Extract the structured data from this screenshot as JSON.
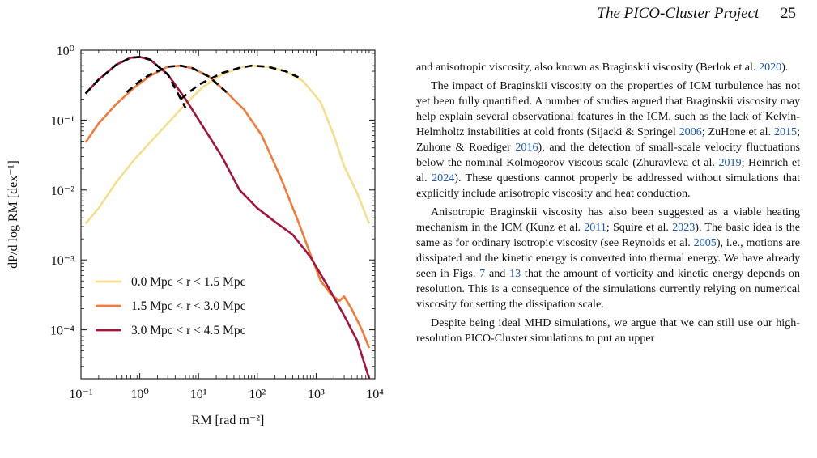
{
  "header": {
    "title": "The PICO-Cluster Project",
    "page_number": "25"
  },
  "figure": {
    "ylabel": "dP/d log RM  [dex⁻¹]",
    "xlabel": "RM  [rad m⁻²]",
    "x_ticks": [
      "10⁻¹",
      "10⁰",
      "10¹",
      "10²",
      "10³",
      "10⁴"
    ],
    "y_ticks": [
      "10⁰",
      "10⁻¹",
      "10⁻²",
      "10⁻³",
      "10⁻⁴"
    ],
    "legend": [
      "0.0 Mpc < r < 1.5 Mpc",
      "1.5 Mpc < r < 3.0 Mpc",
      "3.0 Mpc < r < 4.5 Mpc"
    ],
    "colors": [
      "#f6df8c",
      "#f47a3a",
      "#a3133a",
      "#000000"
    ]
  },
  "chart_data": {
    "type": "line",
    "xscale": "log",
    "yscale": "log",
    "xlabel": "RM  [rad m⁻²]",
    "ylabel": "dP/d log RM  [dex⁻¹]",
    "xlim": [
      0.1,
      10000
    ],
    "ylim": [
      2e-05,
      1
    ],
    "legend_position": "bottom-left",
    "series": [
      {
        "name": "0.0 Mpc < r < 1.5 Mpc",
        "color": "#f6df8c",
        "x": [
          0.12,
          0.2,
          0.4,
          0.8,
          1.5,
          3,
          6,
          12,
          25,
          50,
          80,
          150,
          300,
          600,
          1200,
          2000,
          3000,
          5000,
          8000
        ],
        "y": [
          0.0033,
          0.0055,
          0.013,
          0.027,
          0.048,
          0.09,
          0.17,
          0.3,
          0.45,
          0.56,
          0.6,
          0.58,
          0.5,
          0.36,
          0.18,
          0.06,
          0.022,
          0.009,
          0.0033
        ]
      },
      {
        "name": "1.5 Mpc < r < 3.0 Mpc",
        "color": "#f47a3a",
        "x": [
          0.12,
          0.2,
          0.4,
          0.8,
          1.5,
          3,
          5,
          8,
          15,
          30,
          60,
          120,
          250,
          500,
          800,
          1200,
          1800,
          2500,
          3000,
          4000,
          6000,
          8000
        ],
        "y": [
          0.048,
          0.09,
          0.17,
          0.29,
          0.43,
          0.58,
          0.6,
          0.55,
          0.42,
          0.25,
          0.14,
          0.06,
          0.015,
          0.0035,
          0.0012,
          0.0005,
          0.00032,
          0.00026,
          0.0003,
          0.0002,
          0.0001,
          5.5e-05
        ]
      },
      {
        "name": "3.0 Mpc < r < 4.5 Mpc",
        "color": "#a3133a",
        "x": [
          0.12,
          0.2,
          0.4,
          0.7,
          1,
          1.5,
          3,
          6,
          12,
          25,
          50,
          100,
          200,
          400,
          800,
          1500,
          3000,
          5000,
          8000
        ],
        "y": [
          0.24,
          0.38,
          0.62,
          0.78,
          0.8,
          0.73,
          0.45,
          0.2,
          0.08,
          0.03,
          0.01,
          0.0055,
          0.0035,
          0.0023,
          0.0011,
          0.00045,
          0.00016,
          7e-05,
          2e-05
        ]
      },
      {
        "name": "",
        "style": "dashed",
        "color": "#000000",
        "x": [
          0.12,
          0.2,
          0.4,
          0.7,
          1,
          1.5,
          3,
          6
        ],
        "y": [
          0.24,
          0.38,
          0.62,
          0.78,
          0.8,
          0.73,
          0.45,
          0.15
        ]
      },
      {
        "name": "",
        "style": "dashed",
        "color": "#000000",
        "x": [
          0.6,
          1,
          1.5,
          3,
          5,
          8,
          15,
          30
        ],
        "y": [
          0.25,
          0.36,
          0.45,
          0.58,
          0.6,
          0.55,
          0.42,
          0.25
        ]
      },
      {
        "name": "",
        "style": "dashed",
        "color": "#000000",
        "x": [
          5,
          10,
          25,
          50,
          80,
          150,
          300,
          500
        ],
        "y": [
          0.2,
          0.32,
          0.47,
          0.56,
          0.6,
          0.58,
          0.5,
          0.41
        ]
      }
    ]
  },
  "text": {
    "p1": [
      {
        "t": "and anisotropic viscosity, also known as Braginskii viscosity (Berlok et al. "
      },
      {
        "t": "2020",
        "c": true
      },
      {
        "t": ")."
      }
    ],
    "p2": [
      {
        "t": "The impact of Braginskii viscosity on the properties of ICM turbulence has not yet been fully quantified. A number of studies argued that Braginskii viscosity may help explain several observational features in the ICM, such as the lack of Kelvin-Helmholtz instabilities at cold fronts (Sijacki & Springel "
      },
      {
        "t": "2006",
        "c": true
      },
      {
        "t": "; ZuHone et al. "
      },
      {
        "t": "2015",
        "c": true
      },
      {
        "t": "; Zuhone & Roediger "
      },
      {
        "t": "2016",
        "c": true
      },
      {
        "t": "), and the detection of small-scale velocity fluctuations below the nominal Kolmogorov viscous scale (Zhuravleva et al. "
      },
      {
        "t": "2019",
        "c": true
      },
      {
        "t": "; Heinrich et al. "
      },
      {
        "t": "2024",
        "c": true
      },
      {
        "t": "). These questions cannot properly be addressed without simulations that explicitly include anisotropic viscosity and heat conduction."
      }
    ],
    "p3": [
      {
        "t": "Anisotropic Braginskii viscosity has also been suggested as a viable heating mechanism in the ICM (Kunz et al. "
      },
      {
        "t": "2011",
        "c": true
      },
      {
        "t": "; Squire et al. "
      },
      {
        "t": "2023",
        "c": true
      },
      {
        "t": "). The basic idea is the same as for ordinary isotropic viscosity (see Reynolds et al. "
      },
      {
        "t": "2005",
        "c": true
      },
      {
        "t": "), i.e., motions are dissipated and the kinetic energy is converted into thermal energy. We have already seen in Figs. "
      },
      {
        "t": "7",
        "c": true
      },
      {
        "t": " and "
      },
      {
        "t": "13",
        "c": true
      },
      {
        "t": " that the amount of vorticity and kinetic energy depends on resolution. This is a consequence of the simulations currently relying on numerical viscosity for setting the dissipation scale."
      }
    ],
    "p4": [
      {
        "t": "Despite being ideal MHD simulations, we argue that we can still use our high-resolution PICO-Cluster simulations to put an upper"
      }
    ]
  }
}
